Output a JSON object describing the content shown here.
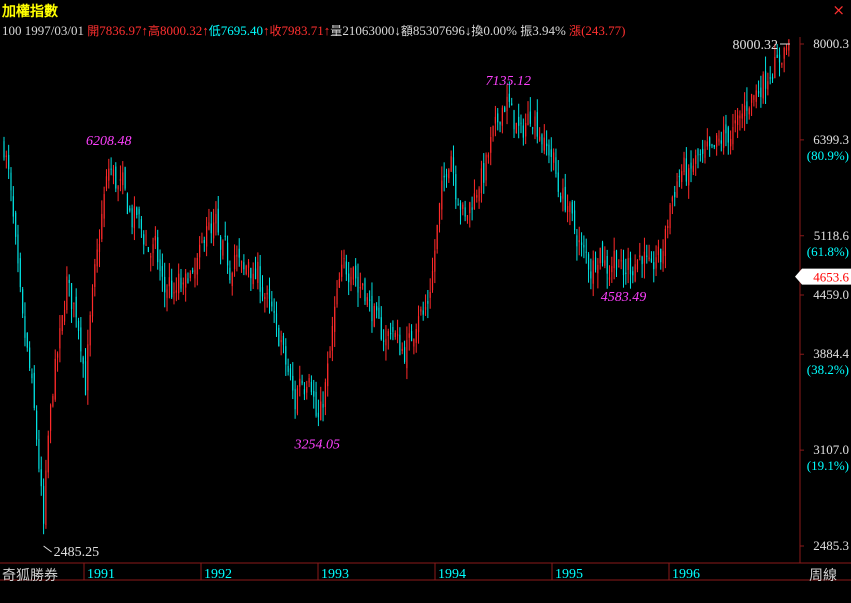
{
  "header": {
    "title": "加權指數",
    "close_symbol": "×",
    "code": "100",
    "date": "1997/03/01",
    "open_label": "開",
    "open_value": "7836.97",
    "high_label": "高",
    "high_value": "8000.32",
    "low_label": "低",
    "low_value": "7695.40",
    "close_label": "收",
    "close_value": "7983.71",
    "volume_label": "量",
    "volume_value": "21063000",
    "amount_label": "額",
    "amount_value": "85307696",
    "turnover_label": "換",
    "turnover_value": "0.00%",
    "amplitude_label": "振",
    "amplitude_value": "3.94%",
    "change_label": "漲",
    "change_value": "(243.77)",
    "up_arrow": "↑",
    "down_arrow": "↓"
  },
  "footer": {
    "brand": "奇狐勝券",
    "period": "周線"
  },
  "colors": {
    "up": "#ff2a2a",
    "down": "#00e0e0",
    "annotation": "#ff40ff",
    "axis": "#8b1a1a",
    "axis_text": "#e0e0e0",
    "highlight_bg": "#ffffff",
    "highlight_text": "#ff0000",
    "year_label": "#00ffff"
  },
  "chart_data": {
    "type": "candlestick",
    "period": "weekly",
    "x_labels": [
      "1991",
      "1992",
      "1993",
      "1994",
      "1995",
      "1996"
    ],
    "y_ticks": [
      {
        "value": 8000.3,
        "label": "8000.3",
        "pct": ""
      },
      {
        "value": 6399.3,
        "label": "6399.3",
        "pct": "(80.9%)"
      },
      {
        "value": 5118.6,
        "label": "5118.6",
        "pct": "(61.8%)"
      },
      {
        "value": 4459.0,
        "label": "4459.0",
        "pct": ""
      },
      {
        "value": 3884.4,
        "label": "3884.4",
        "pct": "(38.2%)"
      },
      {
        "value": 3107.0,
        "label": "3107.0",
        "pct": "(19.1%)"
      },
      {
        "value": 2485.3,
        "label": "2485.3",
        "pct": ""
      }
    ],
    "highlight_price": {
      "value": 4653.6,
      "label": "4653.6"
    },
    "ylim": [
      2485.25,
      8000.32
    ],
    "annotations": [
      {
        "label": "2485.25",
        "value": 2485.25,
        "kind": "low",
        "week": 34
      },
      {
        "label": "6208.48",
        "value": 6208.48,
        "kind": "high",
        "week": 90
      },
      {
        "label": "3254.05",
        "value": 3254.05,
        "kind": "low",
        "week": 269
      },
      {
        "label": "7135.12",
        "value": 7135.12,
        "kind": "high",
        "week": 433
      },
      {
        "label": "4583.49",
        "value": 4583.49,
        "kind": "low",
        "week": 532
      },
      {
        "label": "8000.32",
        "value": 8000.32,
        "kind": "high",
        "week": 675
      }
    ],
    "close_waypoints": [
      [
        0,
        6300
      ],
      [
        4,
        5900
      ],
      [
        8,
        5300
      ],
      [
        12,
        4700
      ],
      [
        16,
        4200
      ],
      [
        20,
        3900
      ],
      [
        24,
        3600
      ],
      [
        28,
        3200
      ],
      [
        32,
        2800
      ],
      [
        34,
        2600
      ],
      [
        38,
        3200
      ],
      [
        42,
        3600
      ],
      [
        46,
        3900
      ],
      [
        50,
        4200
      ],
      [
        54,
        4600
      ],
      [
        58,
        4400
      ],
      [
        62,
        4300
      ],
      [
        66,
        4000
      ],
      [
        70,
        3600
      ],
      [
        74,
        4200
      ],
      [
        78,
        4700
      ],
      [
        82,
        5100
      ],
      [
        86,
        5600
      ],
      [
        90,
        6000
      ],
      [
        94,
        5900
      ],
      [
        98,
        5700
      ],
      [
        102,
        5800
      ],
      [
        106,
        5500
      ],
      [
        110,
        5300
      ],
      [
        114,
        5400
      ],
      [
        118,
        5200
      ],
      [
        122,
        5000
      ],
      [
        126,
        4900
      ],
      [
        130,
        5000
      ],
      [
        134,
        4700
      ],
      [
        138,
        4500
      ],
      [
        142,
        4600
      ],
      [
        146,
        4400
      ],
      [
        150,
        4600
      ],
      [
        154,
        4500
      ],
      [
        158,
        4700
      ],
      [
        162,
        4600
      ],
      [
        166,
        4800
      ],
      [
        170,
        5000
      ],
      [
        174,
        5300
      ],
      [
        178,
        5100
      ],
      [
        182,
        5300
      ],
      [
        186,
        4900
      ],
      [
        190,
        5000
      ],
      [
        194,
        4700
      ],
      [
        198,
        4900
      ],
      [
        202,
        4800
      ],
      [
        206,
        4700
      ],
      [
        210,
        4850
      ],
      [
        214,
        4600
      ],
      [
        218,
        4700
      ],
      [
        222,
        4500
      ],
      [
        226,
        4400
      ],
      [
        230,
        4300
      ],
      [
        234,
        4100
      ],
      [
        238,
        4000
      ],
      [
        242,
        3800
      ],
      [
        246,
        3650
      ],
      [
        250,
        3450
      ],
      [
        254,
        3700
      ],
      [
        258,
        3600
      ],
      [
        262,
        3750
      ],
      [
        266,
        3500
      ],
      [
        269,
        3300
      ],
      [
        272,
        3400
      ],
      [
        276,
        3600
      ],
      [
        280,
        3900
      ],
      [
        284,
        4300
      ],
      [
        288,
        4600
      ],
      [
        292,
        4800
      ],
      [
        296,
        4700
      ],
      [
        300,
        4800
      ],
      [
        304,
        4500
      ],
      [
        308,
        4600
      ],
      [
        312,
        4400
      ],
      [
        316,
        4300
      ],
      [
        320,
        4200
      ],
      [
        324,
        4100
      ],
      [
        328,
        4000
      ],
      [
        332,
        4150
      ],
      [
        336,
        4050
      ],
      [
        340,
        3950
      ],
      [
        344,
        3900
      ],
      [
        348,
        4000
      ],
      [
        352,
        4100
      ],
      [
        356,
        4300
      ],
      [
        360,
        4250
      ],
      [
        364,
        4400
      ],
      [
        368,
        4700
      ],
      [
        372,
        5200
      ],
      [
        376,
        5700
      ],
      [
        380,
        6000
      ],
      [
        384,
        6200
      ],
      [
        388,
        5700
      ],
      [
        392,
        5500
      ],
      [
        396,
        5300
      ],
      [
        400,
        5500
      ],
      [
        404,
        5600
      ],
      [
        408,
        5800
      ],
      [
        412,
        5900
      ],
      [
        416,
        6200
      ],
      [
        420,
        6500
      ],
      [
        424,
        6700
      ],
      [
        428,
        6900
      ],
      [
        433,
        7000
      ],
      [
        436,
        6800
      ],
      [
        440,
        6600
      ],
      [
        444,
        6500
      ],
      [
        448,
        6650
      ],
      [
        452,
        6800
      ],
      [
        456,
        6700
      ],
      [
        460,
        6500
      ],
      [
        464,
        6300
      ],
      [
        468,
        6250
      ],
      [
        472,
        6100
      ],
      [
        476,
        5700
      ],
      [
        480,
        5600
      ],
      [
        484,
        5500
      ],
      [
        488,
        5300
      ],
      [
        492,
        5100
      ],
      [
        496,
        4950
      ],
      [
        500,
        4900
      ],
      [
        504,
        4700
      ],
      [
        508,
        4850
      ],
      [
        512,
        4950
      ],
      [
        516,
        4800
      ],
      [
        520,
        4700
      ],
      [
        524,
        4900
      ],
      [
        528,
        4800
      ],
      [
        532,
        4650
      ],
      [
        536,
        4800
      ],
      [
        540,
        4750
      ],
      [
        544,
        4850
      ],
      [
        548,
        4900
      ],
      [
        552,
        4800
      ],
      [
        556,
        4700
      ],
      [
        560,
        4900
      ],
      [
        564,
        4850
      ],
      [
        568,
        5100
      ],
      [
        572,
        5500
      ],
      [
        576,
        5700
      ],
      [
        580,
        5900
      ],
      [
        584,
        6000
      ],
      [
        588,
        5850
      ],
      [
        592,
        6050
      ],
      [
        596,
        6150
      ],
      [
        600,
        6100
      ],
      [
        604,
        6250
      ],
      [
        608,
        6200
      ],
      [
        612,
        6350
      ],
      [
        616,
        6400
      ],
      [
        620,
        6500
      ],
      [
        624,
        6450
      ],
      [
        628,
        6600
      ],
      [
        632,
        6700
      ],
      [
        636,
        6900
      ],
      [
        640,
        7000
      ],
      [
        644,
        7100
      ],
      [
        648,
        7200
      ],
      [
        652,
        7300
      ],
      [
        656,
        7450
      ],
      [
        660,
        7550
      ],
      [
        664,
        7650
      ],
      [
        668,
        7800
      ],
      [
        672,
        7950
      ],
      [
        675,
        7984
      ]
    ]
  }
}
